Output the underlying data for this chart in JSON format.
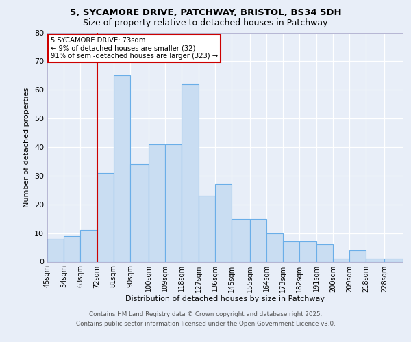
{
  "title1": "5, SYCAMORE DRIVE, PATCHWAY, BRISTOL, BS34 5DH",
  "title2": "Size of property relative to detached houses in Patchway",
  "xlabel": "Distribution of detached houses by size in Patchway",
  "ylabel": "Number of detached properties",
  "bin_labels": [
    "45sqm",
    "54sqm",
    "63sqm",
    "72sqm",
    "81sqm",
    "90sqm",
    "100sqm",
    "109sqm",
    "118sqm",
    "127sqm",
    "136sqm",
    "145sqm",
    "155sqm",
    "164sqm",
    "173sqm",
    "182sqm",
    "191sqm",
    "200sqm",
    "209sqm",
    "218sqm",
    "228sqm"
  ],
  "bin_edges": [
    45,
    54,
    63,
    72,
    81,
    90,
    100,
    109,
    118,
    127,
    136,
    145,
    155,
    164,
    173,
    182,
    191,
    200,
    209,
    218,
    228
  ],
  "heights": [
    8,
    9,
    11,
    31,
    65,
    34,
    41,
    41,
    62,
    23,
    27,
    15,
    15,
    10,
    7,
    7,
    6,
    1,
    4,
    1,
    1
  ],
  "bar_color": "#c9ddf2",
  "bar_edgecolor": "#6aaee8",
  "property_line_x": 72,
  "property_line_color": "#cc0000",
  "annotation_line1": "5 SYCAMORE DRIVE: 73sqm",
  "annotation_line2": "← 9% of detached houses are smaller (32)",
  "annotation_line3": "91% of semi-detached houses are larger (323) →",
  "annotation_box_color": "#cc0000",
  "ylim": [
    0,
    80
  ],
  "yticks": [
    0,
    10,
    20,
    30,
    40,
    50,
    60,
    70,
    80
  ],
  "background_color": "#e8eef8",
  "plot_background": "#e8eef8",
  "grid_color": "#ffffff",
  "footer1": "Contains HM Land Registry data © Crown copyright and database right 2025.",
  "footer2": "Contains public sector information licensed under the Open Government Licence v3.0."
}
